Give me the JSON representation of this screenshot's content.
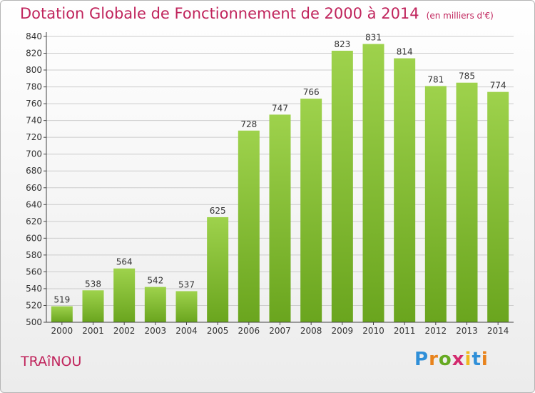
{
  "header": {
    "title": "Dotation Globale de Fonctionnement de 2000 à 2014",
    "unit": "(en milliers d'€)"
  },
  "footer": {
    "commune": "TRAîNOU",
    "logo_text": "Proxiti",
    "logo_colors": [
      "#2f8fd8",
      "#e8831c",
      "#66aa22",
      "#d32a6e",
      "#f1b81e",
      "#2f8fd8",
      "#e8831c"
    ]
  },
  "colors": {
    "accent": "#c0245c",
    "bar_light": "#9ed24c",
    "bar_dark": "#6aa51e",
    "grid": "#cccccc",
    "axis": "#444444"
  },
  "chart_data": {
    "type": "bar",
    "title": "Dotation Globale de Fonctionnement de 2000 à 2014",
    "subtitle": "(en milliers d'€)",
    "categories": [
      "2000",
      "2001",
      "2002",
      "2003",
      "2004",
      "2005",
      "2006",
      "2007",
      "2008",
      "2009",
      "2010",
      "2011",
      "2012",
      "2013",
      "2014"
    ],
    "values": [
      519,
      538,
      564,
      542,
      537,
      625,
      728,
      747,
      766,
      823,
      831,
      814,
      781,
      785,
      774
    ],
    "ylim": [
      500,
      840
    ],
    "yticks": [
      500,
      520,
      540,
      560,
      580,
      600,
      620,
      640,
      660,
      680,
      700,
      720,
      740,
      760,
      780,
      800,
      820,
      840
    ],
    "grid": true,
    "xlabel": "",
    "ylabel": ""
  }
}
